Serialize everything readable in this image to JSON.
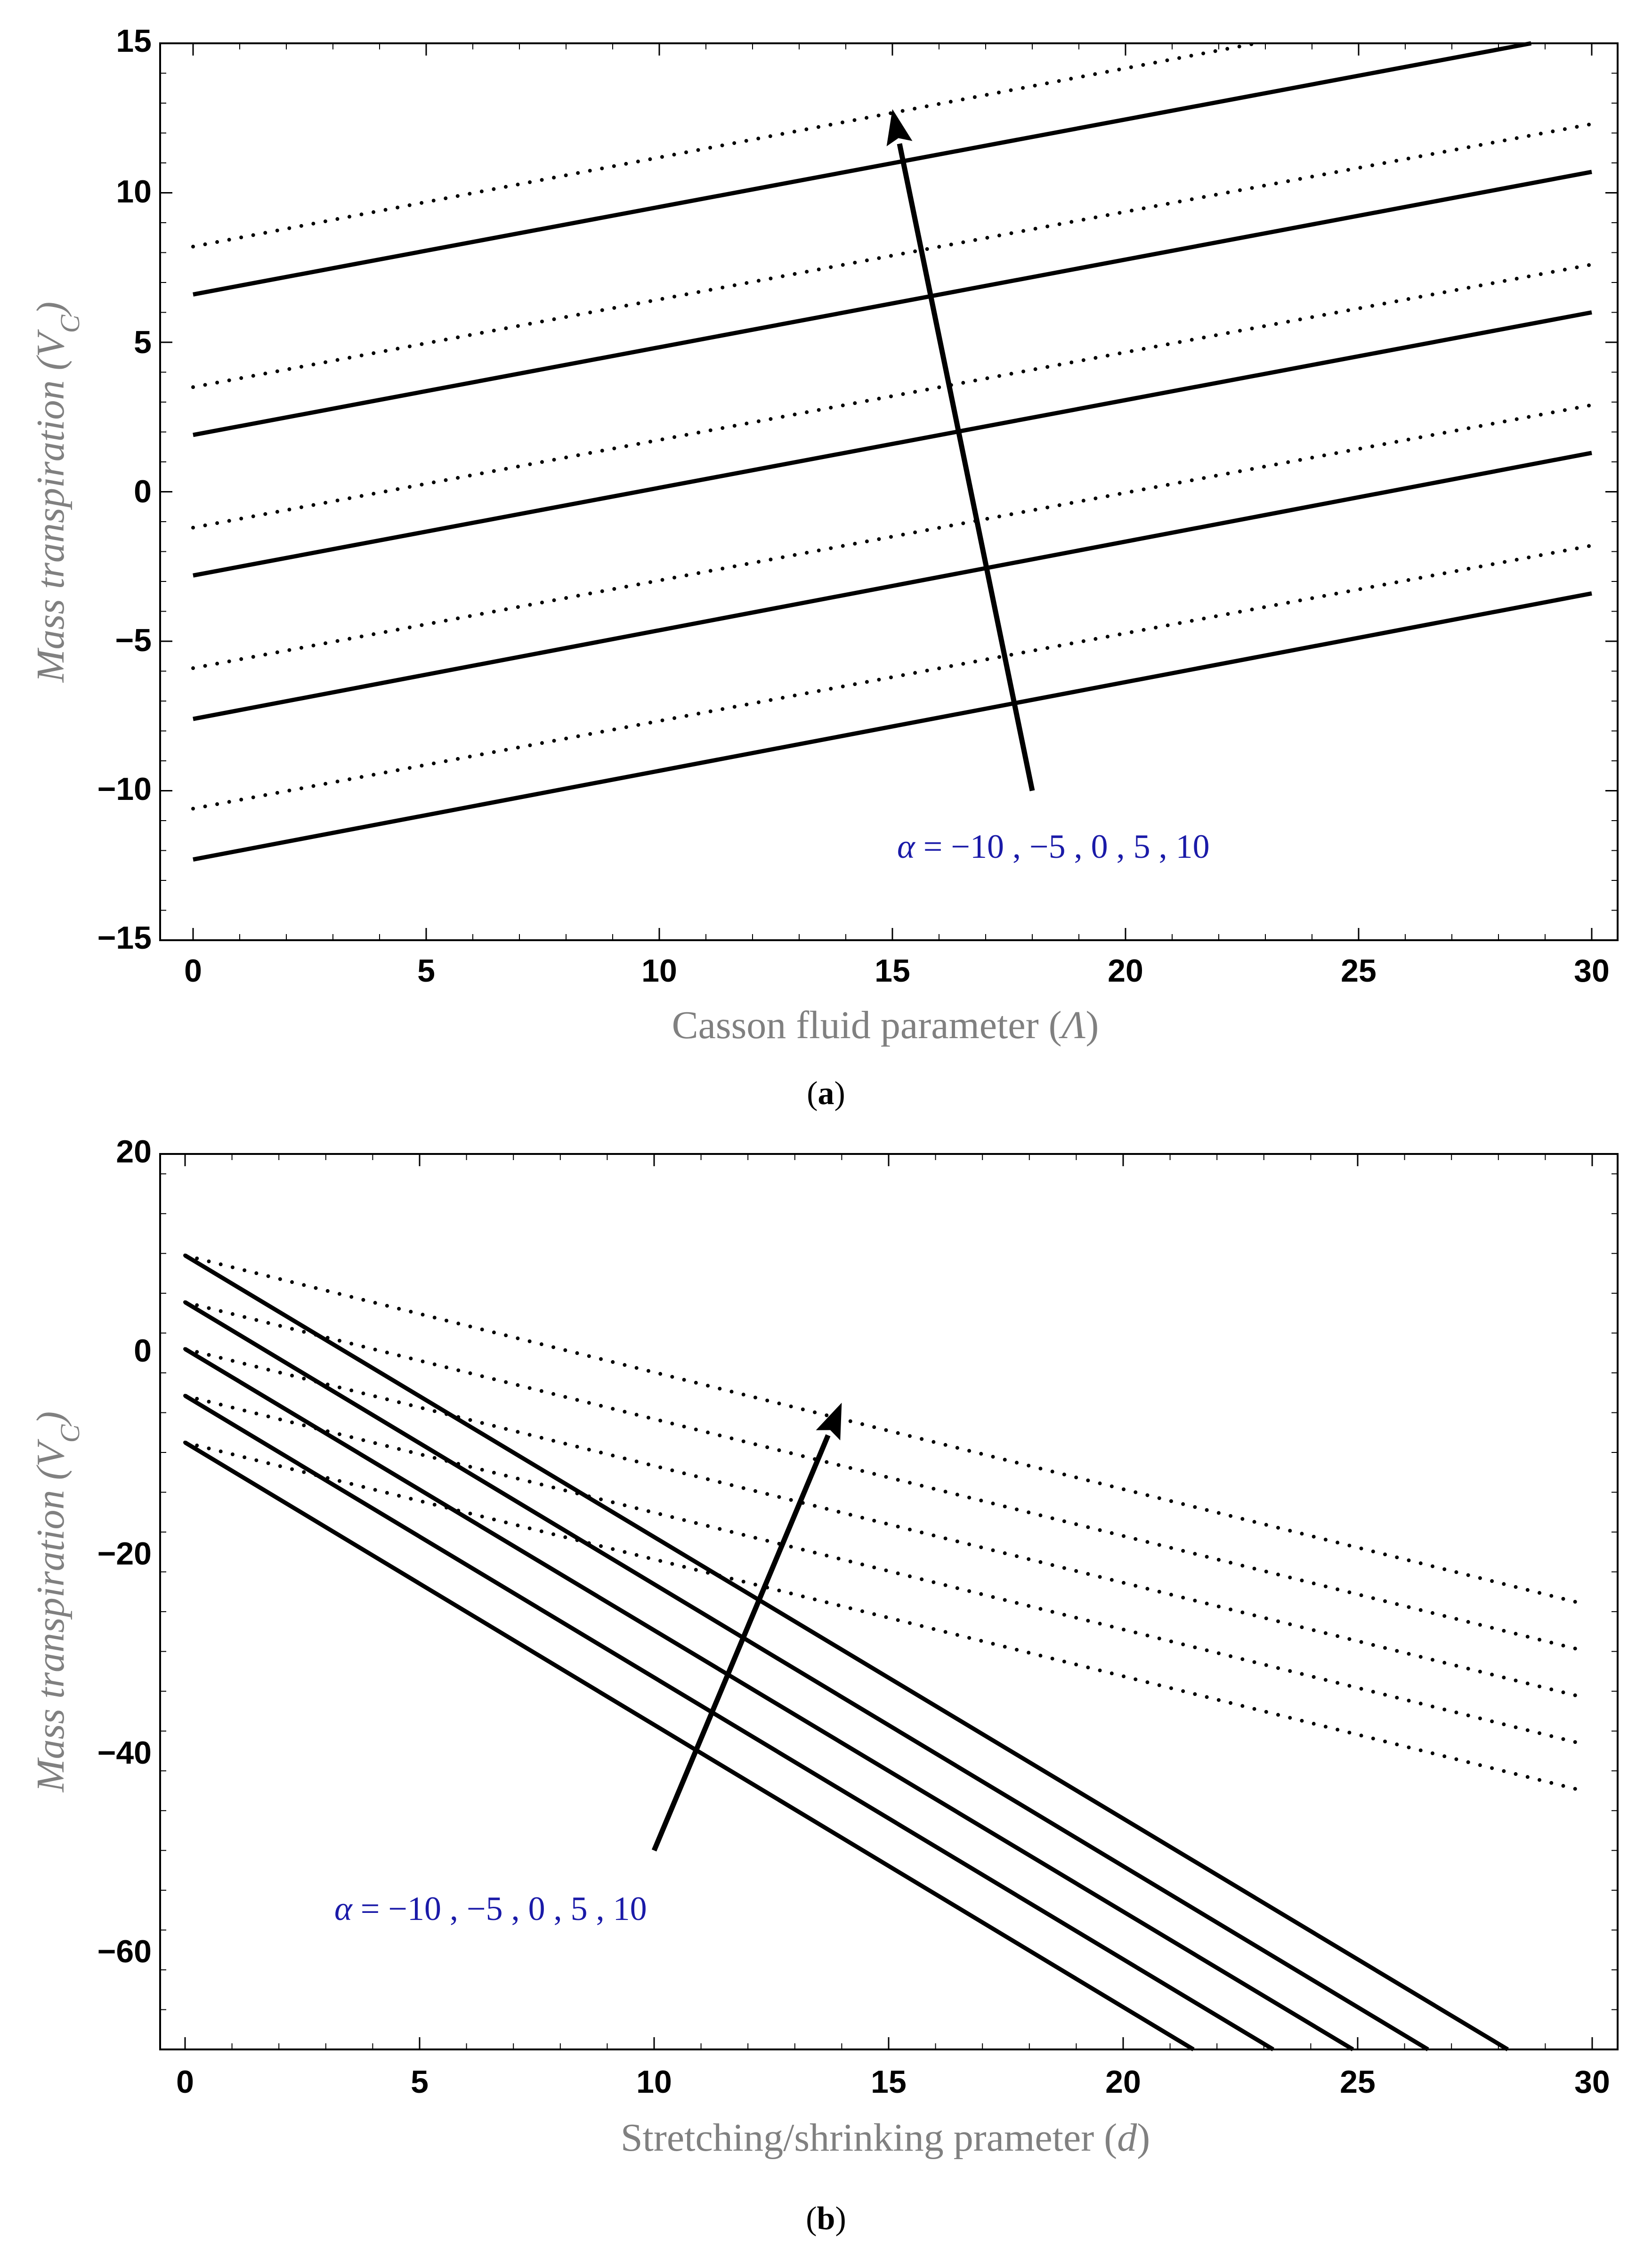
{
  "chart_data": [
    {
      "type": "line",
      "panel": "(a)",
      "caption_open": "(",
      "caption_letter": "a",
      "caption_close": ")",
      "xlabel": "Casson fluid parameter (Λ)",
      "xlabel_parts": [
        "Casson fluid parameter (",
        "Λ",
        ")"
      ],
      "ylabel": "Mass transpiration (V_C)",
      "ylabel_parts": [
        "Mass transpiration (",
        "V",
        "C",
        ")"
      ],
      "xlim": [
        0,
        30
      ],
      "ylim": [
        -15,
        15
      ],
      "xticks": [
        0,
        5,
        10,
        15,
        20,
        25,
        30
      ],
      "yticks": [
        -15,
        -10,
        -5,
        0,
        5,
        10,
        15
      ],
      "xtick_labels": [
        "0",
        "5",
        "10",
        "15",
        "20",
        "25",
        "30"
      ],
      "ytick_labels": [
        "−15",
        "−10",
        "−5",
        "0",
        "5",
        "10",
        "15"
      ],
      "annotation": "α = −10 , −5 , 0 , 5 , 10",
      "annotation_parts": [
        "α",
        " = −10 , −5 , 0 , 5 , 10"
      ],
      "arrow": {
        "from": [
          18,
          -10
        ],
        "to": [
          15,
          12.8
        ]
      },
      "series": [
        {
          "name": "α = -10 (solid)",
          "style": "solid",
          "x": [
            0,
            30
          ],
          "y": [
            -12.3,
            -3.4
          ]
        },
        {
          "name": "α = -10 (dotted)",
          "style": "dotted",
          "x": [
            0,
            30
          ],
          "y": [
            -10.6,
            -1.8
          ]
        },
        {
          "name": "α = -5 (solid)",
          "style": "solid",
          "x": [
            0,
            30
          ],
          "y": [
            -7.6,
            1.3
          ]
        },
        {
          "name": "α = -5 (dotted)",
          "style": "dotted",
          "x": [
            0,
            30
          ],
          "y": [
            -5.9,
            2.9
          ]
        },
        {
          "name": "α = 0 (solid)",
          "style": "solid",
          "x": [
            0,
            30
          ],
          "y": [
            -2.8,
            6.0
          ]
        },
        {
          "name": "α = 0 (dotted)",
          "style": "dotted",
          "x": [
            0,
            30
          ],
          "y": [
            -1.2,
            7.6
          ]
        },
        {
          "name": "α = 5 (solid)",
          "style": "solid",
          "x": [
            0,
            30
          ],
          "y": [
            1.9,
            10.7
          ]
        },
        {
          "name": "α = 5 (dotted)",
          "style": "dotted",
          "x": [
            0,
            30
          ],
          "y": [
            3.5,
            12.3
          ]
        },
        {
          "name": "α = 10 (solid)",
          "style": "solid",
          "x": [
            0,
            28.7
          ],
          "y": [
            6.6,
            15
          ]
        },
        {
          "name": "α = 10 (dotted)",
          "style": "dotted",
          "x": [
            0,
            22.8
          ],
          "y": [
            8.2,
            15
          ]
        }
      ]
    },
    {
      "type": "line",
      "panel": "(b)",
      "caption_open": "(",
      "caption_letter": "b",
      "caption_close": ")",
      "xlabel": "Stretching/shrinking prameter (d)",
      "xlabel_parts": [
        "Stretching/shrinking prameter (",
        "d",
        ")"
      ],
      "ylabel": "Mass transpiration (V_C)",
      "ylabel_parts": [
        "Mass transpiration (",
        "V",
        "C",
        ")"
      ],
      "xlim": [
        -0.5,
        30.5
      ],
      "ylim": [
        -70,
        20
      ],
      "xticks": [
        0,
        5,
        10,
        15,
        20,
        25,
        30
      ],
      "yticks": [
        -60,
        -40,
        -20,
        0,
        20
      ],
      "xtick_labels": [
        "0",
        "5",
        "10",
        "15",
        "20",
        "25",
        "30"
      ],
      "ytick_labels": [
        "−60",
        "−40",
        "−20",
        "0",
        "20"
      ],
      "annotation": "α = −10 , −5 , 0 , 5 , 10",
      "annotation_parts": [
        "α",
        " = −10 , −5 , 0 , 5 , 10"
      ],
      "arrow": {
        "from": [
          10,
          -50
        ],
        "to": [
          14,
          -5
        ]
      },
      "series": [
        {
          "name": "α = -10 (solid)",
          "style": "solid",
          "x": [
            0,
            21.5
          ],
          "y": [
            -9,
            -70
          ]
        },
        {
          "name": "α = -5 (solid)",
          "style": "solid",
          "x": [
            0,
            23.2
          ],
          "y": [
            -4.3,
            -70
          ]
        },
        {
          "name": "α = 0 (solid)",
          "style": "solid",
          "x": [
            0,
            24.9
          ],
          "y": [
            0.4,
            -70
          ]
        },
        {
          "name": "α = 5 (solid)",
          "style": "solid",
          "x": [
            0,
            26.5
          ],
          "y": [
            5.1,
            -70
          ]
        },
        {
          "name": "α = 10 (solid)",
          "style": "solid",
          "x": [
            0,
            28.2
          ],
          "y": [
            9.8,
            -70
          ]
        },
        {
          "name": "α = -10 (dotted)",
          "style": "dotted",
          "x": [
            0,
            29.8
          ],
          "y": [
            -9,
            -44
          ]
        },
        {
          "name": "α = -5 (dotted)",
          "style": "dotted",
          "x": [
            0,
            29.8
          ],
          "y": [
            -4.3,
            -39.3
          ]
        },
        {
          "name": "α = 0 (dotted)",
          "style": "dotted",
          "x": [
            0,
            29.8
          ],
          "y": [
            0.4,
            -34.6
          ]
        },
        {
          "name": "α = 5 (dotted)",
          "style": "dotted",
          "x": [
            0,
            29.8
          ],
          "y": [
            5.1,
            -29.9
          ]
        },
        {
          "name": "α = 10 (dotted)",
          "style": "dotted",
          "x": [
            0,
            29.8
          ],
          "y": [
            9.8,
            -25.2
          ]
        }
      ]
    }
  ],
  "colors": {
    "line": "#000000",
    "axis_title": "#808080",
    "annotation": "#1a1aa8",
    "frame": "#000000"
  }
}
